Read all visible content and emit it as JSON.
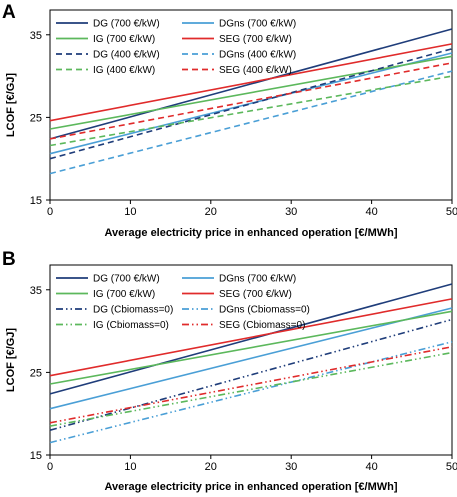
{
  "chart_data": [
    {
      "type": "line",
      "panel": "A",
      "xlabel": "Average electricity price in enhanced operation [€/MWh]",
      "ylabel": "LCOF [€/GJ]",
      "xlim": [
        0,
        50
      ],
      "ylim": [
        15,
        38
      ],
      "xticks": [
        0,
        10,
        20,
        30,
        40,
        50
      ],
      "yticks": [
        15,
        25,
        35
      ],
      "grid": false,
      "legend": "top-left",
      "series": [
        {
          "name": "DG (700 €/kW)",
          "x": [
            0,
            50
          ],
          "y": [
            22.4,
            35.7
          ],
          "color": "#1f3d7a",
          "dash": "solid"
        },
        {
          "name": "DGns (700 €/kW)",
          "x": [
            0,
            50
          ],
          "y": [
            20.6,
            32.8
          ],
          "color": "#4a9fd6",
          "dash": "solid"
        },
        {
          "name": "IG (700 €/kW)",
          "x": [
            0,
            50
          ],
          "y": [
            23.6,
            32.4
          ],
          "color": "#5cb85c",
          "dash": "solid"
        },
        {
          "name": "SEG (700 €/kW)",
          "x": [
            0,
            50
          ],
          "y": [
            24.6,
            33.9
          ],
          "color": "#e02b2b",
          "dash": "solid"
        },
        {
          "name": "DG (400 €/kW)",
          "x": [
            0,
            50
          ],
          "y": [
            20.0,
            33.3
          ],
          "color": "#1f3d7a",
          "dash": "dashed"
        },
        {
          "name": "DGns (400 €/kW)",
          "x": [
            0,
            50
          ],
          "y": [
            18.2,
            30.6
          ],
          "color": "#4a9fd6",
          "dash": "dashed"
        },
        {
          "name": "IG (400 €/kW)",
          "x": [
            0,
            50
          ],
          "y": [
            21.6,
            30.0
          ],
          "color": "#5cb85c",
          "dash": "dashed"
        },
        {
          "name": "SEG (400 €/kW)",
          "x": [
            0,
            50
          ],
          "y": [
            22.4,
            31.6
          ],
          "color": "#e02b2b",
          "dash": "dashed"
        }
      ]
    },
    {
      "type": "line",
      "panel": "B",
      "xlabel": "Average electricity price in enhanced operation [€/MWh]",
      "ylabel": "LCOF [€/GJ]",
      "xlim": [
        0,
        50
      ],
      "ylim": [
        15,
        38
      ],
      "xticks": [
        0,
        10,
        20,
        30,
        40,
        50
      ],
      "yticks": [
        15,
        25,
        35
      ],
      "grid": false,
      "legend": "top-left",
      "series": [
        {
          "name": "DG (700 €/kW)",
          "x": [
            0,
            50
          ],
          "y": [
            22.4,
            35.7
          ],
          "color": "#1f3d7a",
          "dash": "solid"
        },
        {
          "name": "DGns (700 €/kW)",
          "x": [
            0,
            50
          ],
          "y": [
            20.6,
            32.8
          ],
          "color": "#4a9fd6",
          "dash": "solid"
        },
        {
          "name": "IG (700 €/kW)",
          "x": [
            0,
            50
          ],
          "y": [
            23.6,
            32.4
          ],
          "color": "#5cb85c",
          "dash": "solid"
        },
        {
          "name": "SEG (700 €/kW)",
          "x": [
            0,
            50
          ],
          "y": [
            24.6,
            33.9
          ],
          "color": "#e02b2b",
          "dash": "solid"
        },
        {
          "name": "DG (Cbiomass=0)",
          "x": [
            0,
            50
          ],
          "y": [
            18.0,
            31.4
          ],
          "color": "#1f3d7a",
          "dash": "dashdotdot"
        },
        {
          "name": "DGns (Cbiomass=0)",
          "x": [
            0,
            50
          ],
          "y": [
            16.5,
            28.7
          ],
          "color": "#4a9fd6",
          "dash": "dashdotdot"
        },
        {
          "name": "IG (Cbiomass=0)",
          "x": [
            0,
            50
          ],
          "y": [
            18.5,
            27.4
          ],
          "color": "#5cb85c",
          "dash": "dashdotdot"
        },
        {
          "name": "SEG (Cbiomass=0)",
          "x": [
            0,
            50
          ],
          "y": [
            18.9,
            28.1
          ],
          "color": "#e02b2b",
          "dash": "dashdotdot"
        }
      ]
    }
  ]
}
